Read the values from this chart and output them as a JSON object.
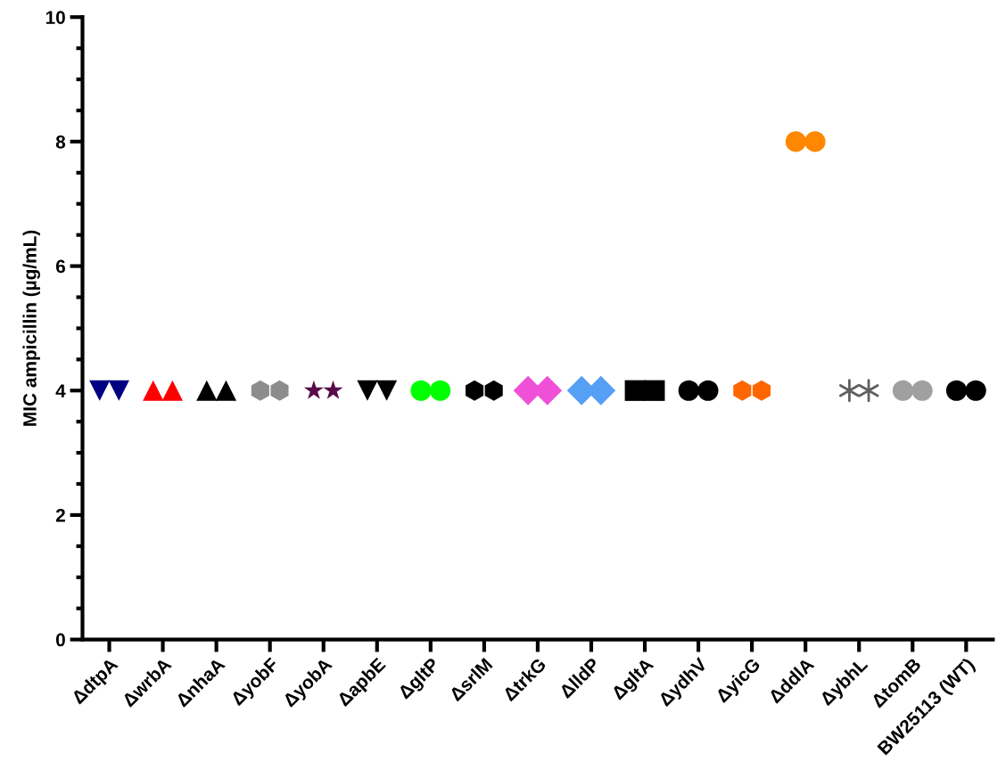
{
  "chart_data": {
    "type": "scatter",
    "ylabel": "MIC ampicillin (µg/mL)",
    "categories": [
      "ΔdtpA",
      "ΔwrbA",
      "ΔnhaA",
      "ΔyobF",
      "ΔyobA",
      "ΔapbE",
      "ΔgltP",
      "ΔsrlM",
      "ΔtrkG",
      "ΔlldP",
      "ΔgltA",
      "ΔydhV",
      "ΔyicG",
      "ΔddlA",
      "ΔybhL",
      "ΔtomB",
      "BW25113 (WT)"
    ],
    "ylim": [
      0,
      10
    ],
    "yticks": [
      0,
      2,
      4,
      6,
      8,
      10
    ],
    "grid": false,
    "series": [
      {
        "x": [
          "ΔdtpA",
          "ΔdtpA"
        ],
        "values": [
          4,
          4
        ],
        "color": "#000080",
        "marker": "triangle_down"
      },
      {
        "x": [
          "ΔwrbA",
          "ΔwrbA"
        ],
        "values": [
          4,
          4
        ],
        "color": "#ff0000",
        "marker": "triangle"
      },
      {
        "x": [
          "ΔnhaA",
          "ΔnhaA"
        ],
        "values": [
          4,
          4
        ],
        "color": "#000000",
        "marker": "triangle"
      },
      {
        "x": [
          "ΔyobF",
          "ΔyobF"
        ],
        "values": [
          4,
          4
        ],
        "color": "#8c8c8c"
      },
      {
        "x": [
          "ΔyobA",
          "ΔyobA"
        ],
        "values": [
          4,
          4
        ],
        "color": "#5a0a4a",
        "marker": "star"
      },
      {
        "x": [
          "ΔapbE",
          "ΔapbE"
        ],
        "values": [
          4,
          4
        ],
        "color": "#000000",
        "marker": "triangle_down"
      },
      {
        "x": [
          "ΔgltP",
          "ΔgltP"
        ],
        "values": [
          4,
          4
        ],
        "color": "#00ff00",
        "marker": "circle"
      },
      {
        "x": [
          "ΔsrlM",
          "ΔsrlM"
        ],
        "values": [
          4,
          4
        ],
        "color": "#000000"
      },
      {
        "x": [
          "ΔtrkG",
          "ΔtrkG"
        ],
        "values": [
          4,
          4
        ],
        "color": "#f050d8",
        "marker": "diamond"
      },
      {
        "x": [
          "ΔlldP",
          "ΔlldP"
        ],
        "values": [
          4,
          4
        ],
        "color": "#55a0f5",
        "marker": "diamond"
      },
      {
        "x": [
          "ΔgltA",
          "ΔgltA"
        ],
        "values": [
          4,
          4
        ],
        "color": "#000000",
        "marker": "square"
      },
      {
        "x": [
          "ΔydhV",
          "ΔydhV"
        ],
        "values": [
          4,
          4
        ],
        "color": "#000000",
        "marker": "circle"
      },
      {
        "x": [
          "ΔyicG",
          "ΔyicG"
        ],
        "values": [
          4,
          4
        ],
        "color": "#ff6600"
      },
      {
        "x": [
          "ΔddlA",
          "ΔddlA"
        ],
        "values": [
          8,
          8
        ],
        "color": "#ff8800",
        "marker": "circle"
      },
      {
        "x": [
          "ΔybhL",
          "ΔybhL"
        ],
        "values": [
          4,
          4
        ],
        "color": "#606060",
        "marker": "cross"
      },
      {
        "x": [
          "ΔtomB",
          "ΔtomB"
        ],
        "values": [
          4,
          4
        ],
        "color": "#a0a0a0",
        "marker": "circle"
      },
      {
        "x": [
          "BW25113 (WT)",
          "BW25113 (WT)"
        ],
        "values": [
          4,
          4
        ],
        "color": "#000000",
        "marker": "circle"
      }
    ]
  }
}
